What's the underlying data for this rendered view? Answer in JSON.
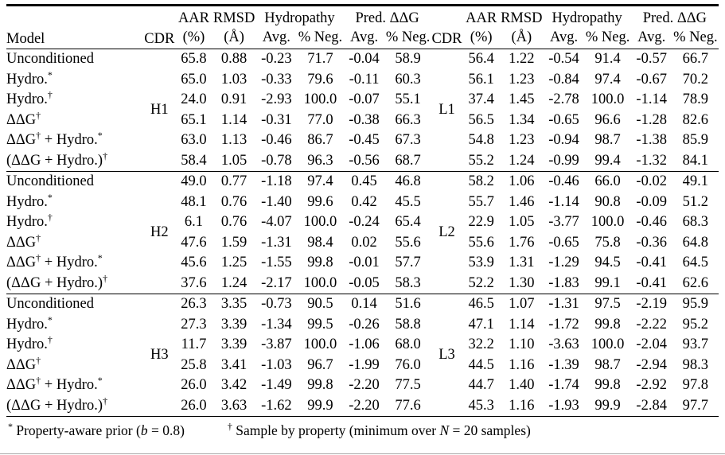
{
  "header": {
    "model": "Model",
    "cdr": "CDR",
    "aar": "AAR",
    "aar_unit": "(%)",
    "rmsd": "RMSD",
    "rmsd_unit": "(Å)",
    "hydropathy": "Hydropathy",
    "pred_ddg": "Pred. ΔΔG",
    "avg": "Avg.",
    "pct_neg": "% Neg."
  },
  "blocks": [
    {
      "left_cdr": "H1",
      "right_cdr": "L1",
      "rows": [
        {
          "model": [
            {
              "t": "Unconditioned",
              "s": ""
            }
          ],
          "left": [
            "65.8",
            "0.88",
            "-0.23",
            "71.7",
            "-0.04",
            "58.9"
          ],
          "right": [
            "56.4",
            "1.22",
            "-0.54",
            "91.4",
            "-0.57",
            "66.7"
          ]
        },
        {
          "model": [
            {
              "t": "Hydro.",
              "s": "*"
            }
          ],
          "left": [
            "65.0",
            "1.03",
            "-0.33",
            "79.6",
            "-0.11",
            "60.3"
          ],
          "right": [
            "56.1",
            "1.23",
            "-0.84",
            "97.4",
            "-0.67",
            "70.2"
          ]
        },
        {
          "model": [
            {
              "t": "Hydro.",
              "s": "†"
            }
          ],
          "left": [
            "24.0",
            "0.91",
            "-2.93",
            "100.0",
            "-0.07",
            "55.1"
          ],
          "right": [
            "37.4",
            "1.45",
            "-2.78",
            "100.0",
            "-1.14",
            "78.9"
          ]
        },
        {
          "model": [
            {
              "t": "ΔΔG",
              "s": "†"
            }
          ],
          "left": [
            "65.1",
            "1.14",
            "-0.31",
            "77.0",
            "-0.38",
            "66.3"
          ],
          "right": [
            "56.5",
            "1.34",
            "-0.65",
            "96.6",
            "-1.28",
            "82.6"
          ]
        },
        {
          "model": [
            {
              "t": "ΔΔG",
              "s": "†"
            },
            {
              "t": " + Hydro.",
              "s": "*"
            }
          ],
          "left": [
            "63.0",
            "1.13",
            "-0.46",
            "86.7",
            "-0.45",
            "67.3"
          ],
          "right": [
            "54.8",
            "1.23",
            "-0.94",
            "98.7",
            "-1.38",
            "85.9"
          ]
        },
        {
          "model": [
            {
              "t": "(ΔΔG + Hydro.)",
              "s": "†"
            }
          ],
          "left": [
            "58.4",
            "1.05",
            "-0.78",
            "96.3",
            "-0.56",
            "68.7"
          ],
          "right": [
            "55.2",
            "1.24",
            "-0.99",
            "99.4",
            "-1.32",
            "84.1"
          ]
        }
      ]
    },
    {
      "left_cdr": "H2",
      "right_cdr": "L2",
      "rows": [
        {
          "model": [
            {
              "t": "Unconditioned",
              "s": ""
            }
          ],
          "left": [
            "49.0",
            "0.77",
            "-1.18",
            "97.4",
            "0.45",
            "46.8"
          ],
          "right": [
            "58.2",
            "1.06",
            "-0.46",
            "66.0",
            "-0.02",
            "49.1"
          ]
        },
        {
          "model": [
            {
              "t": "Hydro.",
              "s": "*"
            }
          ],
          "left": [
            "48.1",
            "0.76",
            "-1.40",
            "99.6",
            "0.42",
            "45.5"
          ],
          "right": [
            "55.7",
            "1.46",
            "-1.14",
            "90.8",
            "-0.09",
            "51.2"
          ]
        },
        {
          "model": [
            {
              "t": "Hydro.",
              "s": "†"
            }
          ],
          "left": [
            "6.1",
            "0.76",
            "-4.07",
            "100.0",
            "-0.24",
            "65.4"
          ],
          "right": [
            "22.9",
            "1.05",
            "-3.77",
            "100.0",
            "-0.46",
            "68.3"
          ]
        },
        {
          "model": [
            {
              "t": "ΔΔG",
              "s": "†"
            }
          ],
          "left": [
            "47.6",
            "1.59",
            "-1.31",
            "98.4",
            "0.02",
            "55.6"
          ],
          "right": [
            "55.6",
            "1.76",
            "-0.65",
            "75.8",
            "-0.36",
            "64.8"
          ]
        },
        {
          "model": [
            {
              "t": "ΔΔG",
              "s": "†"
            },
            {
              "t": " + Hydro.",
              "s": "*"
            }
          ],
          "left": [
            "45.6",
            "1.25",
            "-1.55",
            "99.8",
            "-0.01",
            "57.7"
          ],
          "right": [
            "53.9",
            "1.31",
            "-1.29",
            "94.5",
            "-0.41",
            "64.5"
          ]
        },
        {
          "model": [
            {
              "t": "(ΔΔG + Hydro.)",
              "s": "†"
            }
          ],
          "left": [
            "37.6",
            "1.24",
            "-2.17",
            "100.0",
            "-0.05",
            "58.3"
          ],
          "right": [
            "52.2",
            "1.30",
            "-1.83",
            "99.1",
            "-0.41",
            "62.6"
          ]
        }
      ]
    },
    {
      "left_cdr": "H3",
      "right_cdr": "L3",
      "rows": [
        {
          "model": [
            {
              "t": "Unconditioned",
              "s": ""
            }
          ],
          "left": [
            "26.3",
            "3.35",
            "-0.73",
            "90.5",
            "0.14",
            "51.6"
          ],
          "right": [
            "46.5",
            "1.07",
            "-1.31",
            "97.5",
            "-2.19",
            "95.9"
          ]
        },
        {
          "model": [
            {
              "t": "Hydro.",
              "s": "*"
            }
          ],
          "left": [
            "27.3",
            "3.39",
            "-1.34",
            "99.5",
            "-0.26",
            "58.8"
          ],
          "right": [
            "47.1",
            "1.14",
            "-1.72",
            "99.8",
            "-2.22",
            "95.2"
          ]
        },
        {
          "model": [
            {
              "t": "Hydro.",
              "s": "†"
            }
          ],
          "left": [
            "11.7",
            "3.39",
            "-3.87",
            "100.0",
            "-1.06",
            "68.0"
          ],
          "right": [
            "32.2",
            "1.10",
            "-3.63",
            "100.0",
            "-2.04",
            "93.7"
          ]
        },
        {
          "model": [
            {
              "t": "ΔΔG",
              "s": "†"
            }
          ],
          "left": [
            "25.8",
            "3.41",
            "-1.03",
            "96.7",
            "-1.99",
            "76.0"
          ],
          "right": [
            "44.5",
            "1.16",
            "-1.39",
            "98.7",
            "-2.94",
            "98.3"
          ]
        },
        {
          "model": [
            {
              "t": "ΔΔG",
              "s": "†"
            },
            {
              "t": " + Hydro.",
              "s": "*"
            }
          ],
          "left": [
            "26.0",
            "3.42",
            "-1.49",
            "99.8",
            "-2.20",
            "77.5"
          ],
          "right": [
            "44.7",
            "1.40",
            "-1.74",
            "99.8",
            "-2.92",
            "97.8"
          ]
        },
        {
          "model": [
            {
              "t": "(ΔΔG + Hydro.)",
              "s": "†"
            }
          ],
          "left": [
            "26.0",
            "3.63",
            "-1.62",
            "99.9",
            "-2.20",
            "77.6"
          ],
          "right": [
            "45.3",
            "1.16",
            "-1.93",
            "99.9",
            "-2.84",
            "97.7"
          ]
        }
      ]
    }
  ],
  "footnotes": {
    "left": {
      "marker": "*",
      "pre": "Property-aware prior (",
      "var": "b",
      "post": " = 0.8)"
    },
    "right": {
      "marker": "†",
      "pre": "Sample by property (minimum over ",
      "var": "N",
      "post": " = 20 samples)"
    }
  }
}
